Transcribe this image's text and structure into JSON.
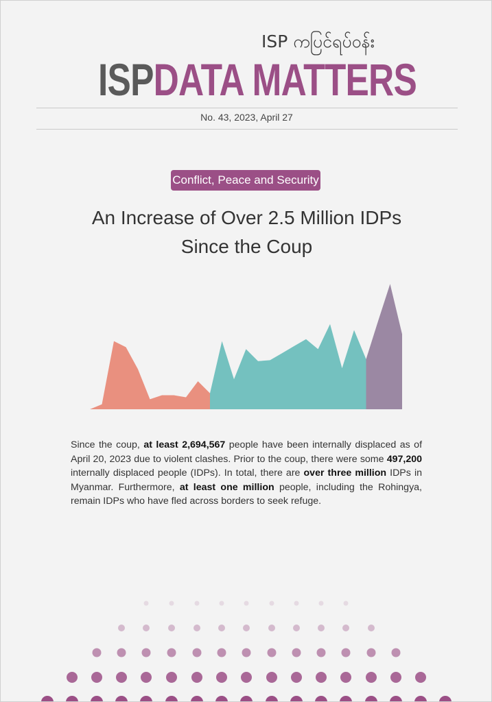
{
  "masthead": {
    "tagline": "ISP ကပြင်ရပ်ဝန်း",
    "brand_left": "ISP",
    "brand_right": "DATA MATTERS"
  },
  "issue_line": "No. 43,   2023, April 27",
  "category_tag": "Conflict, Peace and Security",
  "headline": {
    "line1": "An Increase of Over 2.5 Million IDPs",
    "line2": "Since the Coup"
  },
  "colors": {
    "accent_purple": "#9b4f86",
    "gray_text": "#5a5a5a",
    "pre_coup_area": "#e9907f",
    "post_coup_area": "#74c1bf",
    "recent_area": "#9b88a3"
  },
  "chart_data": {
    "type": "area",
    "series": [
      {
        "values": [
          0,
          5,
          68,
          62,
          40,
          10,
          14,
          14,
          12,
          28,
          16
        ]
      },
      {
        "values": [
          16,
          68,
          30,
          60,
          48,
          49,
          56,
          63,
          70,
          60,
          85,
          41,
          79,
          50
        ]
      },
      {
        "values": [
          50,
          88,
          125,
          75
        ]
      }
    ]
  },
  "body": {
    "s1": "Since the coup, ",
    "b1": "at least 2,694,567",
    "s2": " people have been internally displaced as of April 20, 2023 due to violent clashes. Prior to the coup, there were some ",
    "b2": "497,200",
    "s3": " internally displaced people (IDPs). In total, there are ",
    "b3": "over three million",
    "s4": " IDPs in Myanmar. Furthermore, ",
    "b4": "at least one million",
    "s5": " people, including the Rohingya, remain IDPs who have fled across borders to seek refuge."
  }
}
